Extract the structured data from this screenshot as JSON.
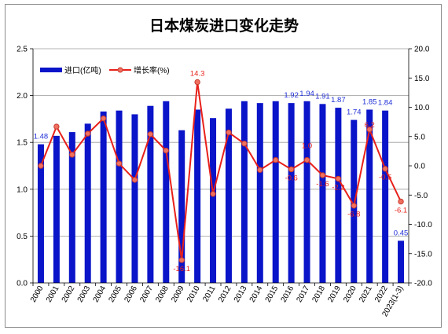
{
  "chart_data": {
    "type": "bar",
    "title": "日本煤炭进口变化走势",
    "categories": [
      "2000",
      "2001",
      "2002",
      "2003",
      "2004",
      "2005",
      "2006",
      "2007",
      "2008",
      "2009",
      "2010",
      "2011",
      "2012",
      "2013",
      "2014",
      "2015",
      "2016",
      "2017",
      "2018",
      "2019",
      "2020",
      "2021",
      "2022",
      "2023(1-3)"
    ],
    "series": [
      {
        "name": "进口(亿吨)",
        "kind": "bar",
        "axis": "left",
        "color": "#0a14c8",
        "values": [
          1.48,
          1.57,
          1.61,
          1.7,
          1.83,
          1.84,
          1.8,
          1.89,
          1.94,
          1.63,
          1.85,
          1.76,
          1.86,
          1.94,
          1.92,
          1.94,
          1.92,
          1.94,
          1.91,
          1.87,
          1.74,
          1.85,
          1.84,
          0.45
        ],
        "data_labels": {
          "0": "1.48",
          "16": "1.92",
          "17": "1.94",
          "18": "1.91",
          "19": "1.87",
          "20": "1.74",
          "21": "1.85",
          "22": "1.84",
          "23": "0.45"
        }
      },
      {
        "name": "增长率(%)",
        "kind": "line",
        "axis": "right",
        "color": "#e8201a",
        "values": [
          0.0,
          6.7,
          1.9,
          5.5,
          8.1,
          0.4,
          -2.4,
          5.4,
          2.6,
          -16.1,
          14.3,
          -4.8,
          5.7,
          3.8,
          -0.7,
          1.0,
          -0.6,
          1.0,
          -1.6,
          -2.2,
          -6.8,
          6.2,
          -0.5,
          -6.1
        ],
        "data_labels": {
          "9": "-16.1",
          "10": "14.3",
          "16": "-0.6",
          "17": "1.0",
          "18": "-1.6",
          "19": "-2.2",
          "20": "-6.8",
          "21": "6.2",
          "22": "-0.5",
          "23": "-6.1"
        }
      }
    ],
    "ylim_left": [
      0,
      2.5
    ],
    "yticks_left": [
      "0.0",
      "0.5",
      "1.0",
      "1.5",
      "2.0",
      "2.5"
    ],
    "ylim_right": [
      -20,
      20
    ],
    "yticks_right": [
      "-20.0",
      "-15.0",
      "-10.0",
      "-5.0",
      "0.0",
      "5.0",
      "10.0",
      "15.0",
      "20.0"
    ],
    "grid": true,
    "legend_position": "top-left"
  }
}
